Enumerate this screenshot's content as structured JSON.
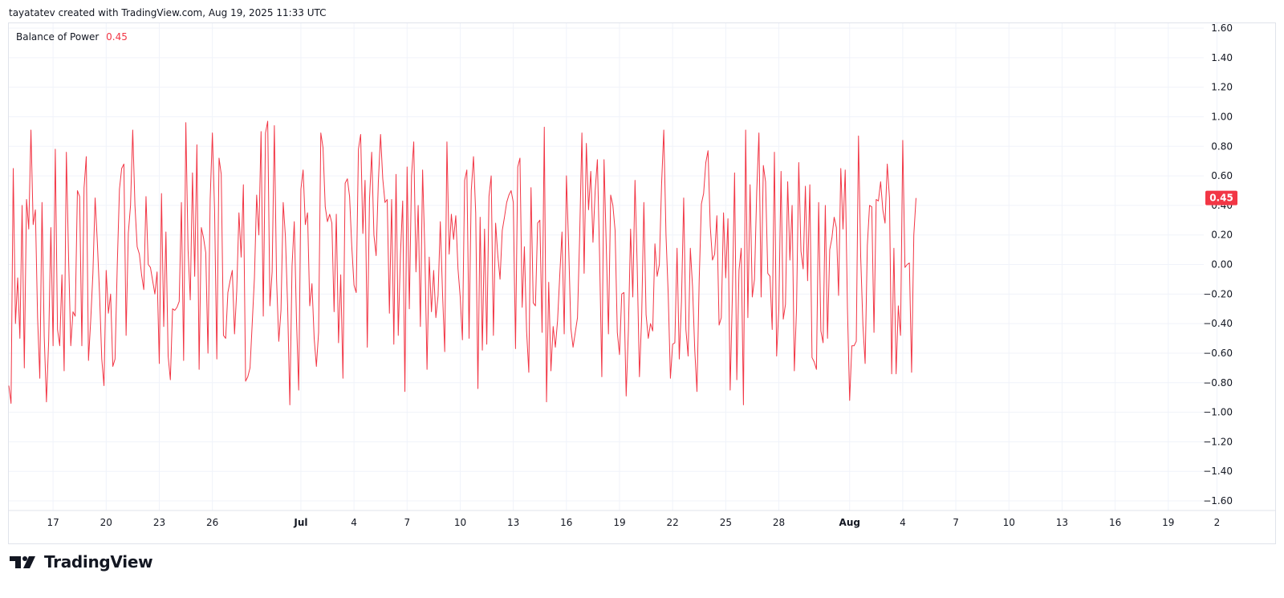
{
  "header": {
    "text": "tayatatev created with TradingView.com, Aug 19, 2025 11:33 UTC"
  },
  "indicator": {
    "name": "Balance of Power",
    "value": "0.45",
    "color": "#f23645"
  },
  "footer": {
    "brand": "TradingView"
  },
  "chart_data": {
    "type": "line",
    "title": "Balance of Power",
    "line_color": "#f23645",
    "grid": true,
    "last_value_label": "0.45",
    "ylim": [
      -1.65,
      1.65
    ],
    "y_ticks": [
      "1.60",
      "1.40",
      "1.20",
      "1.00",
      "0.80",
      "0.60",
      "0.40",
      "0.20",
      "0.00",
      "−0.20",
      "−0.40",
      "−0.60",
      "−0.80",
      "−1.00",
      "−1.20",
      "−1.40",
      "−1.60"
    ],
    "y_tick_values": [
      1.6,
      1.4,
      1.2,
      1.0,
      0.8,
      0.6,
      0.4,
      0.2,
      0.0,
      -0.2,
      -0.4,
      -0.6,
      -0.8,
      -1.0,
      -1.2,
      -1.4,
      -1.6
    ],
    "x_ticks": [
      {
        "label": "17",
        "bold": false,
        "index": 20
      },
      {
        "label": "20",
        "bold": false,
        "index": 44
      },
      {
        "label": "23",
        "bold": false,
        "index": 68
      },
      {
        "label": "26",
        "bold": false,
        "index": 92
      },
      {
        "label": "Jul",
        "bold": true,
        "index": 132
      },
      {
        "label": "4",
        "bold": false,
        "index": 156
      },
      {
        "label": "7",
        "bold": false,
        "index": 180
      },
      {
        "label": "10",
        "bold": false,
        "index": 204
      },
      {
        "label": "13",
        "bold": false,
        "index": 228
      },
      {
        "label": "16",
        "bold": false,
        "index": 252
      },
      {
        "label": "19",
        "bold": false,
        "index": 276
      },
      {
        "label": "22",
        "bold": false,
        "index": 300
      },
      {
        "label": "25",
        "bold": false,
        "index": 324
      },
      {
        "label": "28",
        "bold": false,
        "index": 348
      },
      {
        "label": "Aug",
        "bold": true,
        "index": 380
      },
      {
        "label": "4",
        "bold": false,
        "index": 404
      },
      {
        "label": "7",
        "bold": false,
        "index": 428
      },
      {
        "label": "10",
        "bold": false,
        "index": 452
      },
      {
        "label": "13",
        "bold": false,
        "index": 476
      },
      {
        "label": "16",
        "bold": false,
        "index": 500
      },
      {
        "label": "19",
        "bold": false,
        "index": 524
      },
      {
        "label": "2",
        "bold": false,
        "index": 546
      }
    ],
    "values": [
      -0.82,
      -0.94,
      0.65,
      -0.4,
      -0.09,
      -0.5,
      0.4,
      -0.7,
      0.44,
      0.24,
      0.91,
      0.27,
      0.37,
      -0.36,
      -0.77,
      0.42,
      -0.49,
      -0.93,
      -0.52,
      0.25,
      -0.55,
      0.78,
      -0.44,
      -0.55,
      -0.07,
      -0.72,
      0.76,
      0.05,
      -0.55,
      -0.32,
      -0.35,
      0.5,
      0.46,
      -0.55,
      0.52,
      0.73,
      -0.65,
      -0.38,
      -0.06,
      0.45,
      0.15,
      -0.2,
      -0.64,
      -0.82,
      -0.04,
      -0.33,
      -0.2,
      -0.69,
      -0.64,
      -0.01,
      0.51,
      0.65,
      0.68,
      -0.48,
      0.21,
      0.4,
      0.91,
      0.4,
      0.12,
      0.07,
      -0.07,
      -0.17,
      0.46,
      0.0,
      -0.02,
      -0.11,
      -0.2,
      -0.05,
      -0.67,
      0.48,
      -0.42,
      0.22,
      -0.62,
      -0.78,
      -0.3,
      -0.31,
      -0.29,
      -0.25,
      0.42,
      -0.65,
      0.96,
      0.1,
      -0.24,
      0.62,
      -0.08,
      0.81,
      -0.71,
      0.25,
      0.18,
      0.08,
      -0.6,
      0.44,
      0.89,
      0.36,
      -0.64,
      0.72,
      0.61,
      -0.48,
      -0.5,
      -0.19,
      -0.11,
      -0.04,
      -0.47,
      -0.18,
      0.35,
      0.05,
      0.54,
      -0.79,
      -0.76,
      -0.7,
      -0.4,
      -0.09,
      0.47,
      0.2,
      0.9,
      -0.35,
      0.89,
      0.97,
      -0.28,
      -0.05,
      0.94,
      -0.1,
      -0.52,
      -0.31,
      0.42,
      0.19,
      -0.28,
      -0.95,
      -0.01,
      0.29,
      -0.37,
      -0.85,
      0.51,
      0.64,
      0.27,
      0.35,
      -0.28,
      -0.13,
      -0.5,
      -0.69,
      -0.46,
      0.89,
      0.79,
      0.39,
      0.29,
      0.34,
      0.28,
      -0.32,
      0.34,
      -0.53,
      -0.07,
      -0.77,
      0.55,
      0.58,
      0.46,
      0.12,
      -0.14,
      -0.19,
      0.78,
      0.88,
      0.21,
      0.57,
      -0.56,
      0.44,
      0.76,
      0.2,
      0.06,
      0.56,
      0.88,
      0.58,
      0.42,
      0.44,
      -0.33,
      0.44,
      -0.54,
      0.61,
      -0.48,
      0.07,
      0.43,
      -0.86,
      0.66,
      -0.3,
      0.6,
      0.83,
      -0.05,
      0.4,
      -0.42,
      0.64,
      0.1,
      -0.71,
      0.05,
      -0.32,
      -0.04,
      -0.36,
      -0.21,
      0.29,
      -0.19,
      -0.59,
      0.83,
      0.07,
      0.34,
      0.17,
      0.33,
      -0.03,
      -0.22,
      -0.51,
      0.57,
      0.64,
      -0.5,
      0.5,
      0.73,
      0.35,
      -0.84,
      0.32,
      -0.58,
      0.24,
      -0.54,
      0.46,
      0.6,
      -0.48,
      0.28,
      0.06,
      -0.1,
      0.23,
      0.32,
      0.42,
      0.47,
      0.5,
      0.42,
      -0.57,
      0.66,
      0.72,
      -0.29,
      0.12,
      -0.45,
      -0.73,
      0.52,
      -0.26,
      -0.28,
      0.28,
      0.3,
      -0.46,
      0.93,
      -0.93,
      -0.12,
      -0.72,
      -0.42,
      -0.56,
      -0.38,
      -0.07,
      0.22,
      -0.47,
      0.6,
      0.13,
      -0.43,
      -0.56,
      -0.46,
      -0.36,
      0.2,
      0.89,
      -0.06,
      0.82,
      0.37,
      0.63,
      0.15,
      0.5,
      0.71,
      0.05,
      -0.76,
      0.71,
      0.13,
      -0.47,
      0.47,
      0.4,
      0.23,
      -0.46,
      -0.61,
      -0.2,
      -0.19,
      -0.89,
      -0.45,
      0.24,
      -0.22,
      0.57,
      -0.02,
      -0.76,
      -0.36,
      0.42,
      -0.34,
      -0.5,
      -0.4,
      -0.45,
      0.14,
      -0.08,
      0.0,
      0.54,
      0.91,
      0.2,
      -0.2,
      -0.77,
      -0.54,
      -0.53,
      0.11,
      -0.64,
      -0.25,
      0.45,
      -0.44,
      -0.62,
      0.11,
      -0.15,
      -0.58,
      -0.86,
      -0.11,
      0.41,
      0.48,
      0.69,
      0.77,
      0.26,
      0.03,
      0.07,
      0.33,
      -0.41,
      -0.36,
      0.35,
      -0.09,
      0.31,
      -0.85,
      -0.21,
      0.62,
      -0.78,
      -0.04,
      0.11,
      -0.95,
      0.91,
      -0.36,
      0.54,
      -0.22,
      -0.1,
      0.49,
      0.89,
      -0.22,
      0.67,
      0.56,
      -0.06,
      -0.08,
      -0.44,
      0.76,
      -0.62,
      -0.3,
      0.63,
      -0.37,
      -0.27,
      0.56,
      0.03,
      0.4,
      -0.72,
      -0.3,
      0.69,
      0.09,
      -0.03,
      0.53,
      -0.11,
      0.54,
      -0.63,
      -0.66,
      -0.71,
      0.42,
      -0.45,
      -0.53,
      0.4,
      -0.5,
      0.1,
      0.18,
      0.32,
      0.25,
      -0.21,
      0.65,
      0.24,
      0.64,
      -0.29,
      -0.92,
      -0.55,
      -0.55,
      -0.52,
      0.87,
      0.05,
      -0.41,
      -0.67,
      0.13,
      0.4,
      0.39,
      -0.46,
      0.44,
      0.43,
      0.56,
      0.37,
      0.28,
      0.68,
      0.45,
      -0.74,
      0.11,
      -0.74,
      -0.28,
      -0.48,
      0.84,
      -0.02,
      0.0,
      0.01,
      -0.73,
      0.2,
      0.45
    ]
  }
}
